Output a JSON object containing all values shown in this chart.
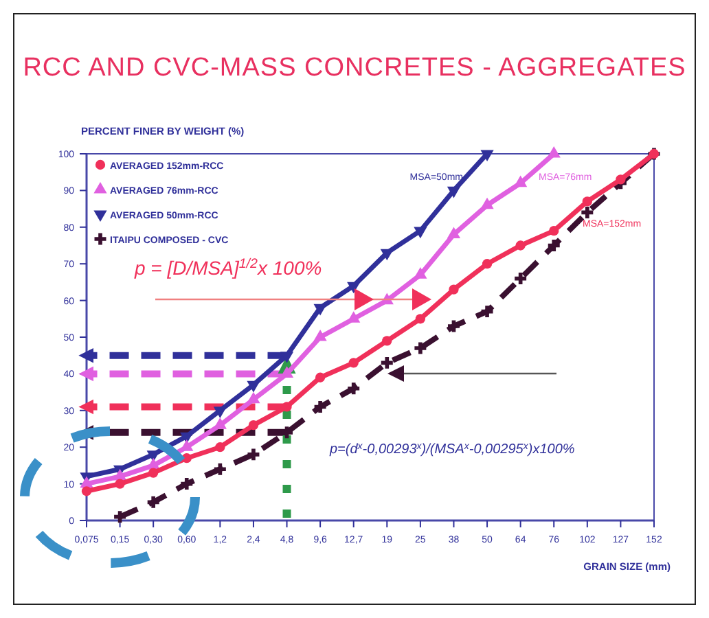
{
  "chart_data": {
    "type": "line",
    "title": "RCC AND CVC-MASS CONCRETES - AGGREGATES",
    "ylabel": "PERCENT FINER BY WEIGHT (%)",
    "xlabel": "GRAIN SIZE (mm)",
    "categories": [
      "0,075",
      "0,15",
      "0,30",
      "0,60",
      "1,2",
      "2,4",
      "4,8",
      "9,6",
      "12,7",
      "19",
      "25",
      "38",
      "50",
      "64",
      "76",
      "102",
      "127",
      "152"
    ],
    "ylim": [
      0,
      100
    ],
    "yticks": [
      0,
      10,
      20,
      30,
      40,
      50,
      60,
      70,
      80,
      90,
      100
    ],
    "grid": false,
    "legend": "top left",
    "line_style": "solid",
    "series": [
      {
        "name": "AVERAGED 152mm-RCC",
        "color": "#f0305a",
        "marker": "circle",
        "values": [
          8,
          10,
          13,
          17,
          20,
          26,
          31,
          39,
          43,
          49,
          55,
          63,
          70,
          75,
          79,
          87,
          93,
          100
        ]
      },
      {
        "name": "AVERAGED 76mm-RCC",
        "color": "#e060e0",
        "marker": "triangle",
        "values": [
          10,
          12,
          15,
          20,
          26,
          33,
          40,
          50,
          55,
          60,
          67,
          78,
          86,
          92,
          100,
          null,
          null,
          null
        ]
      },
      {
        "name": "AVERAGED 50mm-RCC",
        "color": "#30309a",
        "marker": "triangle-down",
        "values": [
          12,
          14,
          18,
          23,
          30,
          37,
          45,
          58,
          64,
          73,
          79,
          90,
          100,
          null,
          null,
          null,
          null,
          null
        ]
      },
      {
        "name": "ITAIPU COMPOSED - CVC",
        "color": "#3a1030",
        "marker": "cross",
        "line_style": "dashed",
        "values": [
          null,
          1,
          5,
          10,
          14,
          18,
          24,
          31,
          36,
          43,
          47,
          53,
          57,
          66,
          75,
          84,
          92,
          100
        ]
      }
    ],
    "ref_lines": [
      {
        "axis": "y",
        "value": 45,
        "color": "#30309a",
        "line_style": "dashed"
      },
      {
        "axis": "y",
        "value": 40,
        "color": "#e060e0",
        "line_style": "dashed"
      },
      {
        "axis": "y",
        "value": 31,
        "color": "#f0305a",
        "line_style": "dashed"
      },
      {
        "axis": "y",
        "value": 24,
        "color": "#3a1030",
        "line_style": "dashed"
      },
      {
        "axis": "x",
        "value": "4,8",
        "color": "#2e9a4a",
        "line_style": "dotted"
      }
    ],
    "annotations": [
      "MSA=50mm",
      "MSA=76mm",
      "MSA=152mm",
      "p = [D/MSA]$^{1/2}$x 100%",
      "p=(d$^{x}$-0,00293$^{x}$)/(MSA$^{x}$-0,00295$^{x}$)x100%"
    ]
  }
}
